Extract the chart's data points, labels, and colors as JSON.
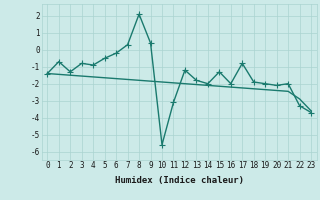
{
  "x": [
    0,
    1,
    2,
    3,
    4,
    5,
    6,
    7,
    8,
    9,
    10,
    11,
    12,
    13,
    14,
    15,
    16,
    17,
    18,
    19,
    20,
    21,
    22,
    23
  ],
  "y_main": [
    -1.4,
    -0.7,
    -1.3,
    -0.8,
    -0.9,
    -0.5,
    -0.2,
    0.3,
    2.1,
    0.4,
    -5.6,
    -3.1,
    -1.2,
    -1.8,
    -2.0,
    -1.3,
    -2.0,
    -0.8,
    -1.9,
    -2.0,
    -2.1,
    -2.0,
    -3.3,
    -3.7
  ],
  "y_trend": [
    -1.4,
    -1.45,
    -1.5,
    -1.55,
    -1.6,
    -1.65,
    -1.7,
    -1.75,
    -1.8,
    -1.85,
    -1.9,
    -1.95,
    -2.0,
    -2.05,
    -2.1,
    -2.15,
    -2.2,
    -2.25,
    -2.3,
    -2.35,
    -2.4,
    -2.45,
    -2.9,
    -3.6
  ],
  "bg_color": "#cceae8",
  "grid_color": "#aad4d1",
  "line_color": "#1a7a6e",
  "trend_color": "#1a7a6e",
  "xlabel": "Humidex (Indice chaleur)",
  "ylabel": "",
  "xlim": [
    -0.5,
    23.5
  ],
  "ylim": [
    -6.5,
    2.7
  ],
  "yticks": [
    -6,
    -5,
    -4,
    -3,
    -2,
    -1,
    0,
    1,
    2
  ],
  "xticks": [
    0,
    1,
    2,
    3,
    4,
    5,
    6,
    7,
    8,
    9,
    10,
    11,
    12,
    13,
    14,
    15,
    16,
    17,
    18,
    19,
    20,
    21,
    22,
    23
  ],
  "marker": "+",
  "linewidth": 1.0,
  "markersize": 4,
  "fontsize_label": 6.5,
  "fontsize_tick": 5.5
}
